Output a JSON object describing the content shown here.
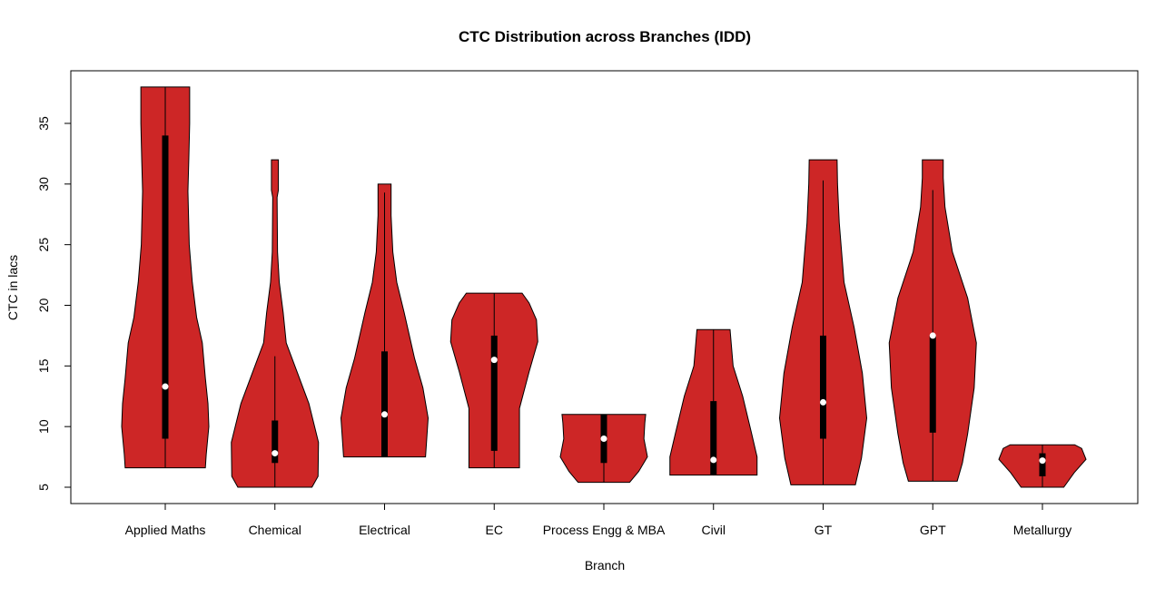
{
  "chart_data": {
    "type": "violin",
    "title": "CTC Distribution across Branches (IDD)",
    "xlabel": "Branch",
    "ylabel": "CTC in lacs",
    "ylim": [
      3.6,
      39.2
    ],
    "yticks": [
      5,
      10,
      15,
      20,
      25,
      30,
      35
    ],
    "grid": false,
    "colors": {
      "fill": "#CD2626",
      "outline": "#000000",
      "box": "#000000",
      "median": "#FFFFFF"
    },
    "categories": [
      "Applied Maths",
      "Chemical",
      "Electrical",
      "EC",
      "Process Engg & MBA",
      "Civil",
      "GT",
      "GPT",
      "Metallurgy"
    ],
    "series": [
      {
        "category": "Applied Maths",
        "min": 6.6,
        "q1": 9.0,
        "median": 13.3,
        "q3": 34.0,
        "whisker_high": 38.0,
        "max": 38.0,
        "density": [
          [
            6.6,
            0.92
          ],
          [
            7.7,
            0.94
          ],
          [
            10,
            1.0
          ],
          [
            11.9,
            0.98
          ],
          [
            14,
            0.92
          ],
          [
            16.9,
            0.85
          ],
          [
            19,
            0.72
          ],
          [
            21.9,
            0.62
          ],
          [
            25,
            0.55
          ],
          [
            29.4,
            0.52
          ],
          [
            32,
            0.54
          ],
          [
            35,
            0.56
          ],
          [
            38,
            0.56
          ]
        ]
      },
      {
        "category": "Chemical",
        "min": 5.0,
        "q1": 7.0,
        "median": 7.8,
        "q3": 10.5,
        "whisker_high": 15.8,
        "max": 32.0,
        "density": [
          [
            5,
            0.85
          ],
          [
            5.9,
            0.99
          ],
          [
            8.7,
            1.0
          ],
          [
            11.9,
            0.78
          ],
          [
            14.4,
            0.52
          ],
          [
            16.9,
            0.26
          ],
          [
            19.4,
            0.19
          ],
          [
            21.9,
            0.1
          ],
          [
            24.4,
            0.06
          ],
          [
            28.9,
            0.05
          ],
          [
            29.5,
            0.08
          ],
          [
            32,
            0.08
          ]
        ]
      },
      {
        "category": "Electrical",
        "min": 7.5,
        "q1": 7.5,
        "median": 11.0,
        "q3": 16.2,
        "whisker_high": 29.3,
        "max": 30.0,
        "density": [
          [
            7.5,
            0.94
          ],
          [
            10.7,
            1.0
          ],
          [
            13.2,
            0.88
          ],
          [
            15.6,
            0.69
          ],
          [
            19.4,
            0.45
          ],
          [
            21.9,
            0.28
          ],
          [
            24.4,
            0.19
          ],
          [
            27.4,
            0.15
          ],
          [
            30,
            0.15
          ]
        ]
      },
      {
        "category": "EC",
        "min": 6.6,
        "q1": 8.0,
        "median": 15.5,
        "q3": 17.5,
        "whisker_high": 21.0,
        "max": 21.0,
        "density": [
          [
            6.6,
            0.58
          ],
          [
            9,
            0.58
          ],
          [
            11.5,
            0.58
          ],
          [
            14.5,
            0.8
          ],
          [
            17,
            1.0
          ],
          [
            18.8,
            0.97
          ],
          [
            20.2,
            0.8
          ],
          [
            21,
            0.64
          ]
        ]
      },
      {
        "category": "Process Engg & MBA",
        "min": 5.4,
        "q1": 7.0,
        "median": 9.0,
        "q3": 11.0,
        "whisker_high": 11.0,
        "max": 11.0,
        "density": [
          [
            5.4,
            0.59
          ],
          [
            6.3,
            0.8
          ],
          [
            7.5,
            1.0
          ],
          [
            9,
            0.92
          ],
          [
            10.3,
            0.94
          ],
          [
            11,
            0.96
          ]
        ]
      },
      {
        "category": "Civil",
        "min": 6.0,
        "q1": 6.05,
        "median": 7.25,
        "q3": 12.1,
        "whisker_high": 18.0,
        "max": 18.0,
        "density": [
          [
            6,
            1.0
          ],
          [
            7.5,
            1.0
          ],
          [
            9.5,
            0.87
          ],
          [
            12.5,
            0.67
          ],
          [
            15,
            0.45
          ],
          [
            18,
            0.38
          ]
        ]
      },
      {
        "category": "GT",
        "min": 5.2,
        "q1": 9.0,
        "median": 12.0,
        "q3": 17.5,
        "whisker_high": 30.3,
        "max": 32.0,
        "density": [
          [
            5.2,
            0.74
          ],
          [
            7.4,
            0.88
          ],
          [
            10.7,
            1.0
          ],
          [
            14.4,
            0.9
          ],
          [
            18.2,
            0.71
          ],
          [
            21.9,
            0.48
          ],
          [
            26.8,
            0.37
          ],
          [
            30,
            0.33
          ],
          [
            32,
            0.32
          ]
        ]
      },
      {
        "category": "GPT",
        "min": 5.5,
        "q1": 9.5,
        "median": 17.5,
        "q3": 17.5,
        "whisker_high": 29.5,
        "max": 32.0,
        "density": [
          [
            5.5,
            0.56
          ],
          [
            7,
            0.68
          ],
          [
            9.4,
            0.8
          ],
          [
            13.2,
            0.95
          ],
          [
            16.9,
            1.0
          ],
          [
            20.6,
            0.8
          ],
          [
            24.4,
            0.45
          ],
          [
            28.1,
            0.28
          ],
          [
            30.5,
            0.24
          ],
          [
            32,
            0.24
          ]
        ]
      },
      {
        "category": "Metallurgy",
        "min": 5.0,
        "q1": 5.9,
        "median": 7.2,
        "q3": 7.8,
        "whisker_high": 8.5,
        "max": 8.5,
        "density": [
          [
            5,
            0.49
          ],
          [
            6.2,
            0.73
          ],
          [
            7.3,
            1.0
          ],
          [
            8.2,
            0.9
          ],
          [
            8.5,
            0.74
          ]
        ]
      }
    ]
  }
}
